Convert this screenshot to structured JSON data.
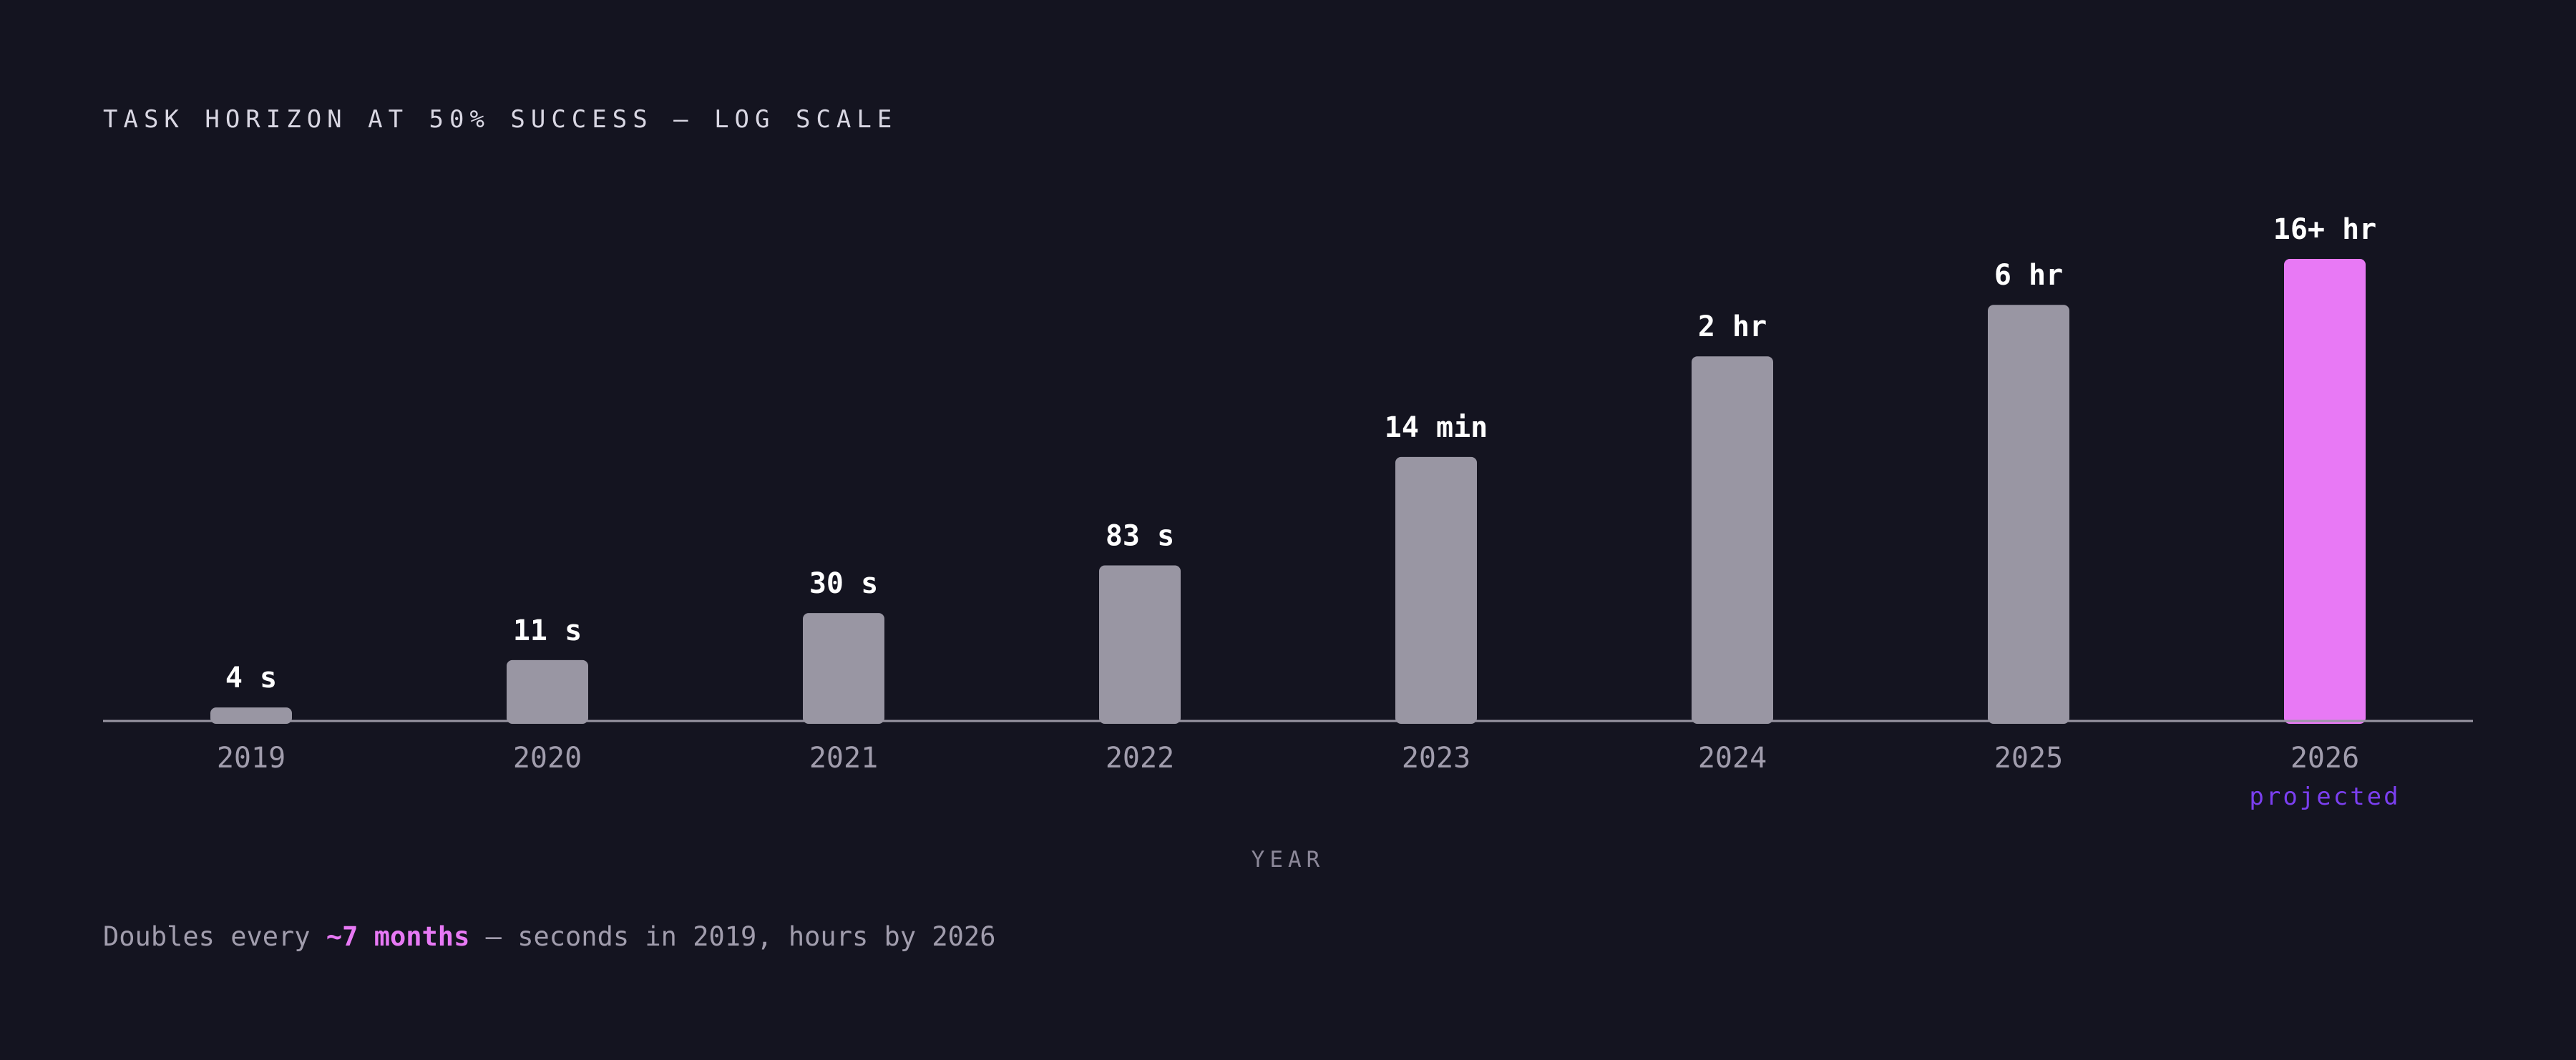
{
  "chart_data": {
    "type": "bar",
    "title": "TASK HORIZON AT 50% SUCCESS — LOG SCALE",
    "xlabel": "YEAR",
    "ylabel": "",
    "y_scale": "log",
    "y_unit": "seconds",
    "ylim": [
      3,
      57600
    ],
    "grid": false,
    "categories": [
      "2019",
      "2020",
      "2021",
      "2022",
      "2023",
      "2024",
      "2025",
      "2026"
    ],
    "values": [
      4,
      11,
      30,
      83,
      840,
      7200,
      21600,
      57600
    ],
    "value_labels": [
      "4 s",
      "11 s",
      "30 s",
      "83 s",
      "14 min",
      "2 hr",
      "6 hr",
      "16+ hr"
    ],
    "highlight_index": 7,
    "highlight_note": "projected"
  },
  "footnote": {
    "prefix": "Doubles every",
    "highlight": "~7 months",
    "suffix": "— seconds in 2019, hours by 2026"
  },
  "colors": {
    "background": "#141420",
    "bar": "#9996a3",
    "bar_highlight": "#e879f5",
    "baseline": "#9996a3",
    "note": "#7b3ff0",
    "footnote_highlight": "#e879f5"
  }
}
